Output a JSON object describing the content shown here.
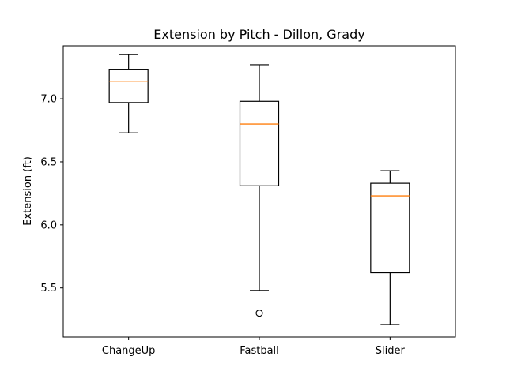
{
  "chart_data": {
    "type": "boxplot",
    "title": "Extension by Pitch - Dillon, Grady",
    "xlabel": "",
    "ylabel": "Extension (ft)",
    "ylim": [
      5.11,
      7.42
    ],
    "yticks": [
      5.5,
      6.0,
      6.5,
      7.0
    ],
    "ytick_labels": [
      "5.5",
      "6.0",
      "6.5",
      "7.0"
    ],
    "grid": false,
    "categories": [
      "ChangeUp",
      "Fastball",
      "Slider"
    ],
    "boxes": [
      {
        "category": "ChangeUp",
        "whisker_low": 6.73,
        "q1": 6.97,
        "median": 7.14,
        "q3": 7.23,
        "whisker_high": 7.35,
        "outliers": []
      },
      {
        "category": "Fastball",
        "whisker_low": 5.48,
        "q1": 6.31,
        "median": 6.8,
        "q3": 6.98,
        "whisker_high": 7.27,
        "outliers": [
          5.3
        ]
      },
      {
        "category": "Slider",
        "whisker_low": 5.21,
        "q1": 5.62,
        "median": 6.23,
        "q3": 6.33,
        "whisker_high": 6.43,
        "outliers": []
      }
    ],
    "colors": {
      "box": "#000000",
      "median": "#ff7f0e"
    }
  }
}
